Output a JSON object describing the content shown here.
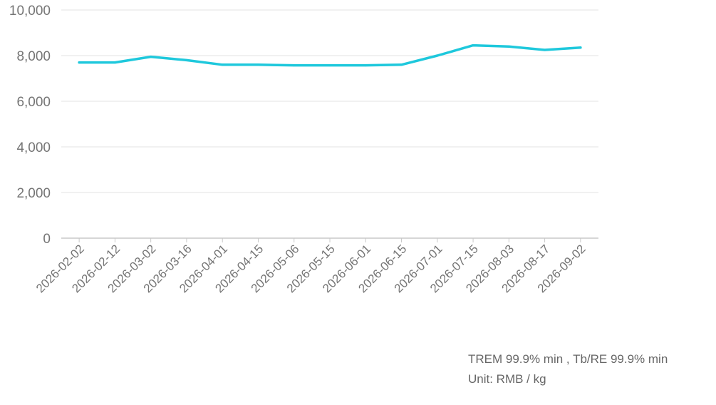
{
  "colors": {
    "series": "#1ec8dc",
    "grid": "#e3e3e3",
    "axis": "#c8c8c8",
    "text": "#757575"
  },
  "notes": {
    "line1": "TREM 99.9% min , Tb/RE 99.9% min",
    "line2": "Unit: RMB / kg"
  },
  "chart_data": {
    "type": "line",
    "title": "",
    "xlabel": "",
    "ylabel": "",
    "ylim": [
      0,
      10000
    ],
    "yticks": [
      "0",
      "2,000",
      "4,000",
      "6,000",
      "8,000",
      "10,000"
    ],
    "grid": "horizontal",
    "legend": "none",
    "categories": [
      "2026-02-02",
      "2026-02-12",
      "2026-03-02",
      "2026-03-16",
      "2026-04-01",
      "2026-04-15",
      "2026-05-06",
      "2026-05-15",
      "2026-06-01",
      "2026-06-15",
      "2026-07-01",
      "2026-07-15",
      "2026-08-03",
      "2026-08-17",
      "2026-09-02"
    ],
    "series": [
      {
        "values": [
          7700,
          7700,
          7950,
          7800,
          7600,
          7600,
          7575,
          7575,
          7575,
          7600,
          8000,
          8450,
          8400,
          8250,
          8350
        ]
      }
    ]
  }
}
